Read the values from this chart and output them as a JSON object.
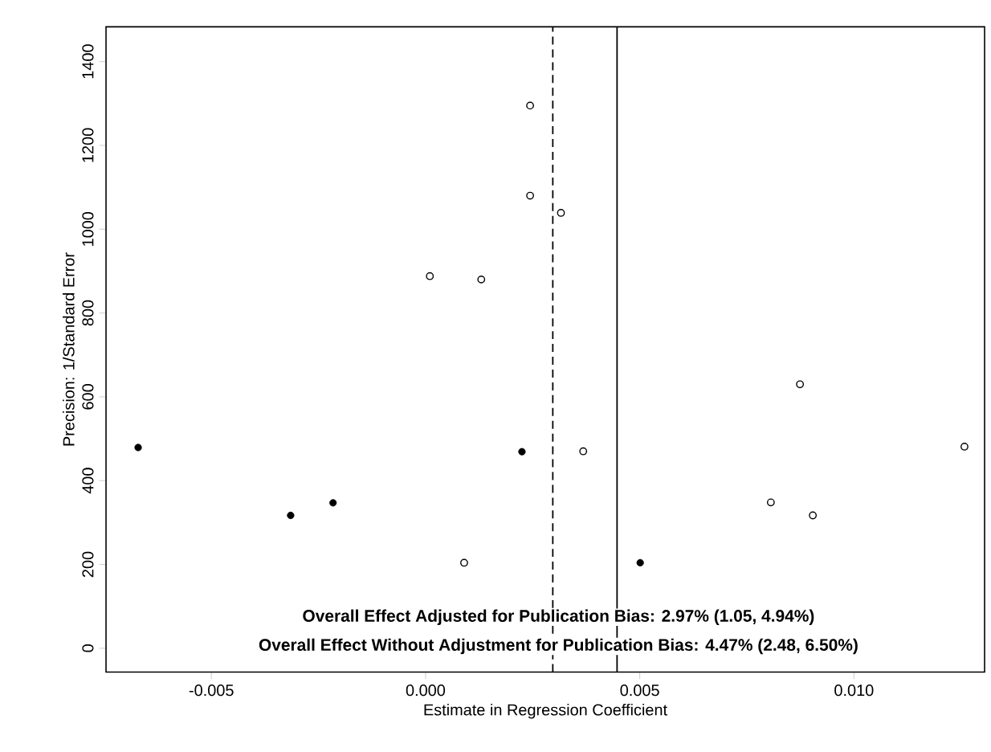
{
  "chart_data": {
    "type": "scatter",
    "xlabel": "Estimate in Regression Coefficient",
    "ylabel": "Precision: 1/Standard Error",
    "series": [
      {
        "color": "#000000",
        "x": [
          0.0001,
          0.0013,
          0.0009,
          0.00244,
          0.00244,
          0.00316,
          0.00368,
          0.00874,
          0.01258,
          0.00806,
          0.00904
        ],
        "values": [
          888,
          880,
          204,
          1295,
          1080,
          1039,
          470,
          630,
          481,
          348,
          317
        ]
      },
      {
        "color": "#000000",
        "x": [
          -0.00671,
          -0.00315,
          -0.00216,
          0.00225,
          0.00501
        ],
        "values": [
          479,
          317,
          347,
          469,
          204
        ]
      }
    ],
    "xlim": [
      -0.00746,
      0.01305
    ],
    "ylim": [
      -57,
      1483
    ],
    "xticks": [
      -0.005,
      {
        "value": 0,
        "label": "0.000"
      },
      0.005,
      {
        "value": 0.01,
        "label": "0.010"
      }
    ],
    "yticks": [
      0,
      200,
      400,
      600,
      800,
      1000,
      1200,
      1400
    ],
    "marker": "circle",
    "grid": false,
    "ref_lines": [
      {
        "axis": "x",
        "value": 0.00297,
        "line_style": "dashed"
      },
      {
        "axis": "x",
        "value": 0.00447,
        "line_style": "solid"
      }
    ],
    "annotations": [
      "Overall Effect Adjusted for Publication Bias: 2.97% (1.05, 4.94%)",
      "Overall Effect Without Adjustment for Publication Bias: 4.47% (2.48, 6.50%)"
    ]
  }
}
